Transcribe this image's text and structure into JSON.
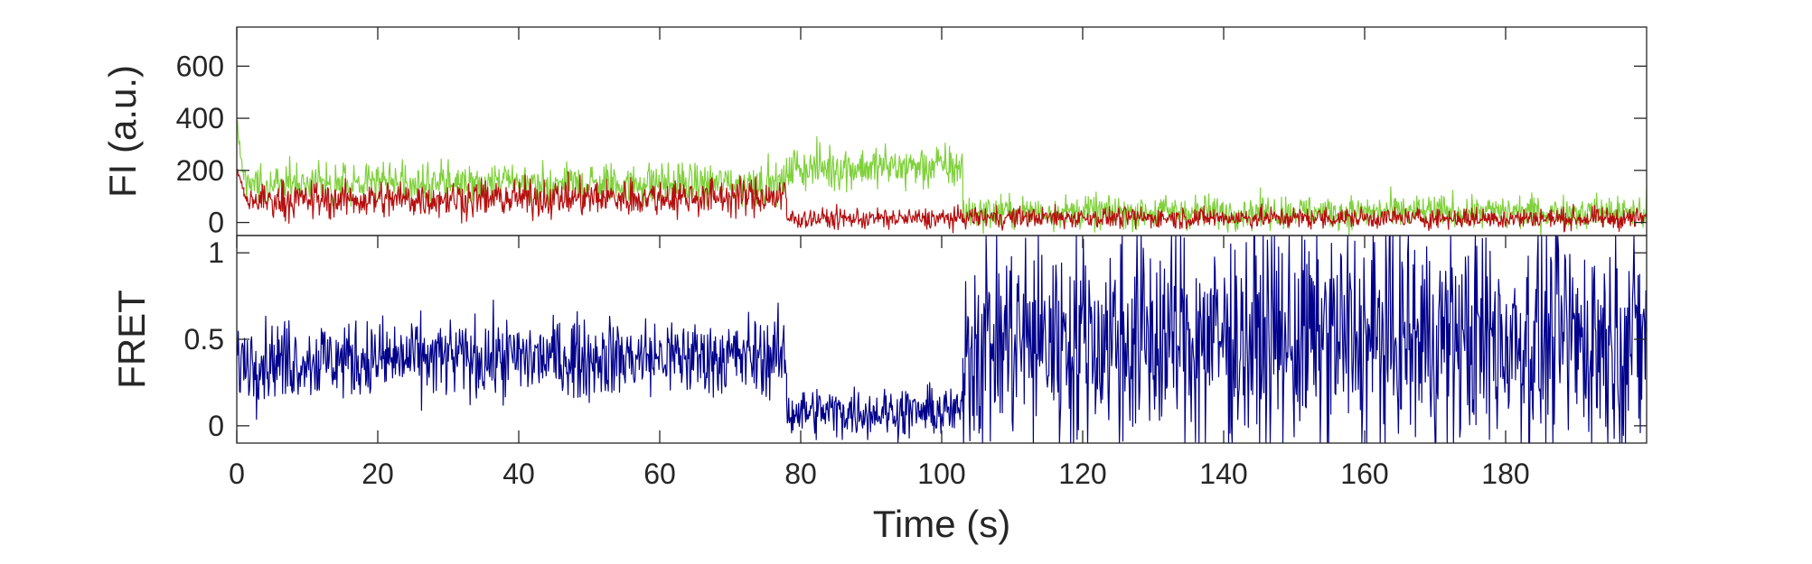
{
  "chart_data": [
    {
      "type": "line",
      "ylabel": "FI (a.u.)",
      "xlabel": "",
      "xlim": [
        0,
        200
      ],
      "ylim": [
        -50,
        750
      ],
      "yticks": [
        0,
        200,
        400,
        600
      ],
      "grid": false,
      "legend": "none",
      "sampling_interval_s": 0.1,
      "series": [
        {
          "color": "#7fd13b",
          "segments": [
            {
              "t": [
                0,
                1
              ],
              "mean": [
                380,
                150
              ],
              "noise": 20
            },
            {
              "t": [
                1,
                78
              ],
              "mean": [
                150,
                150
              ],
              "noise": 55
            },
            {
              "t": [
                78,
                103
              ],
              "mean": [
                210,
                215
              ],
              "noise": 60
            },
            {
              "t": [
                103,
                200
              ],
              "mean": [
                40,
                40
              ],
              "noise": 45
            }
          ]
        },
        {
          "color": "#b50f0f",
          "segments": [
            {
              "t": [
                0,
                1
              ],
              "mean": [
                200,
                120
              ],
              "noise": 20
            },
            {
              "t": [
                1,
                78
              ],
              "mean": [
                85,
                100
              ],
              "noise": 50
            },
            {
              "t": [
                78,
                103
              ],
              "mean": [
                15,
                15
              ],
              "noise": 28
            },
            {
              "t": [
                103,
                200
              ],
              "mean": [
                20,
                15
              ],
              "noise": 28
            }
          ]
        }
      ]
    },
    {
      "type": "line",
      "ylabel": "FRET",
      "xlabel": "Time (s)",
      "xlim": [
        0,
        200
      ],
      "ylim": [
        -0.1,
        1.1
      ],
      "xticks": [
        0,
        20,
        40,
        60,
        80,
        100,
        120,
        140,
        160,
        180
      ],
      "yticks": [
        0,
        0.5,
        1
      ],
      "ytick_labels": [
        "0",
        "0.5",
        "1"
      ],
      "grid": false,
      "legend": "none",
      "sampling_interval_s": 0.1,
      "series": [
        {
          "color": "#00008b",
          "segments": [
            {
              "t": [
                0,
                78
              ],
              "mean": [
                0.38,
                0.4
              ],
              "noise": 0.16
            },
            {
              "t": [
                78,
                103
              ],
              "mean": [
                0.08,
                0.08
              ],
              "noise": 0.1
            },
            {
              "t": [
                103,
                200
              ],
              "mean": [
                0.5,
                0.5
              ],
              "noise": 0.45
            }
          ]
        }
      ]
    }
  ]
}
